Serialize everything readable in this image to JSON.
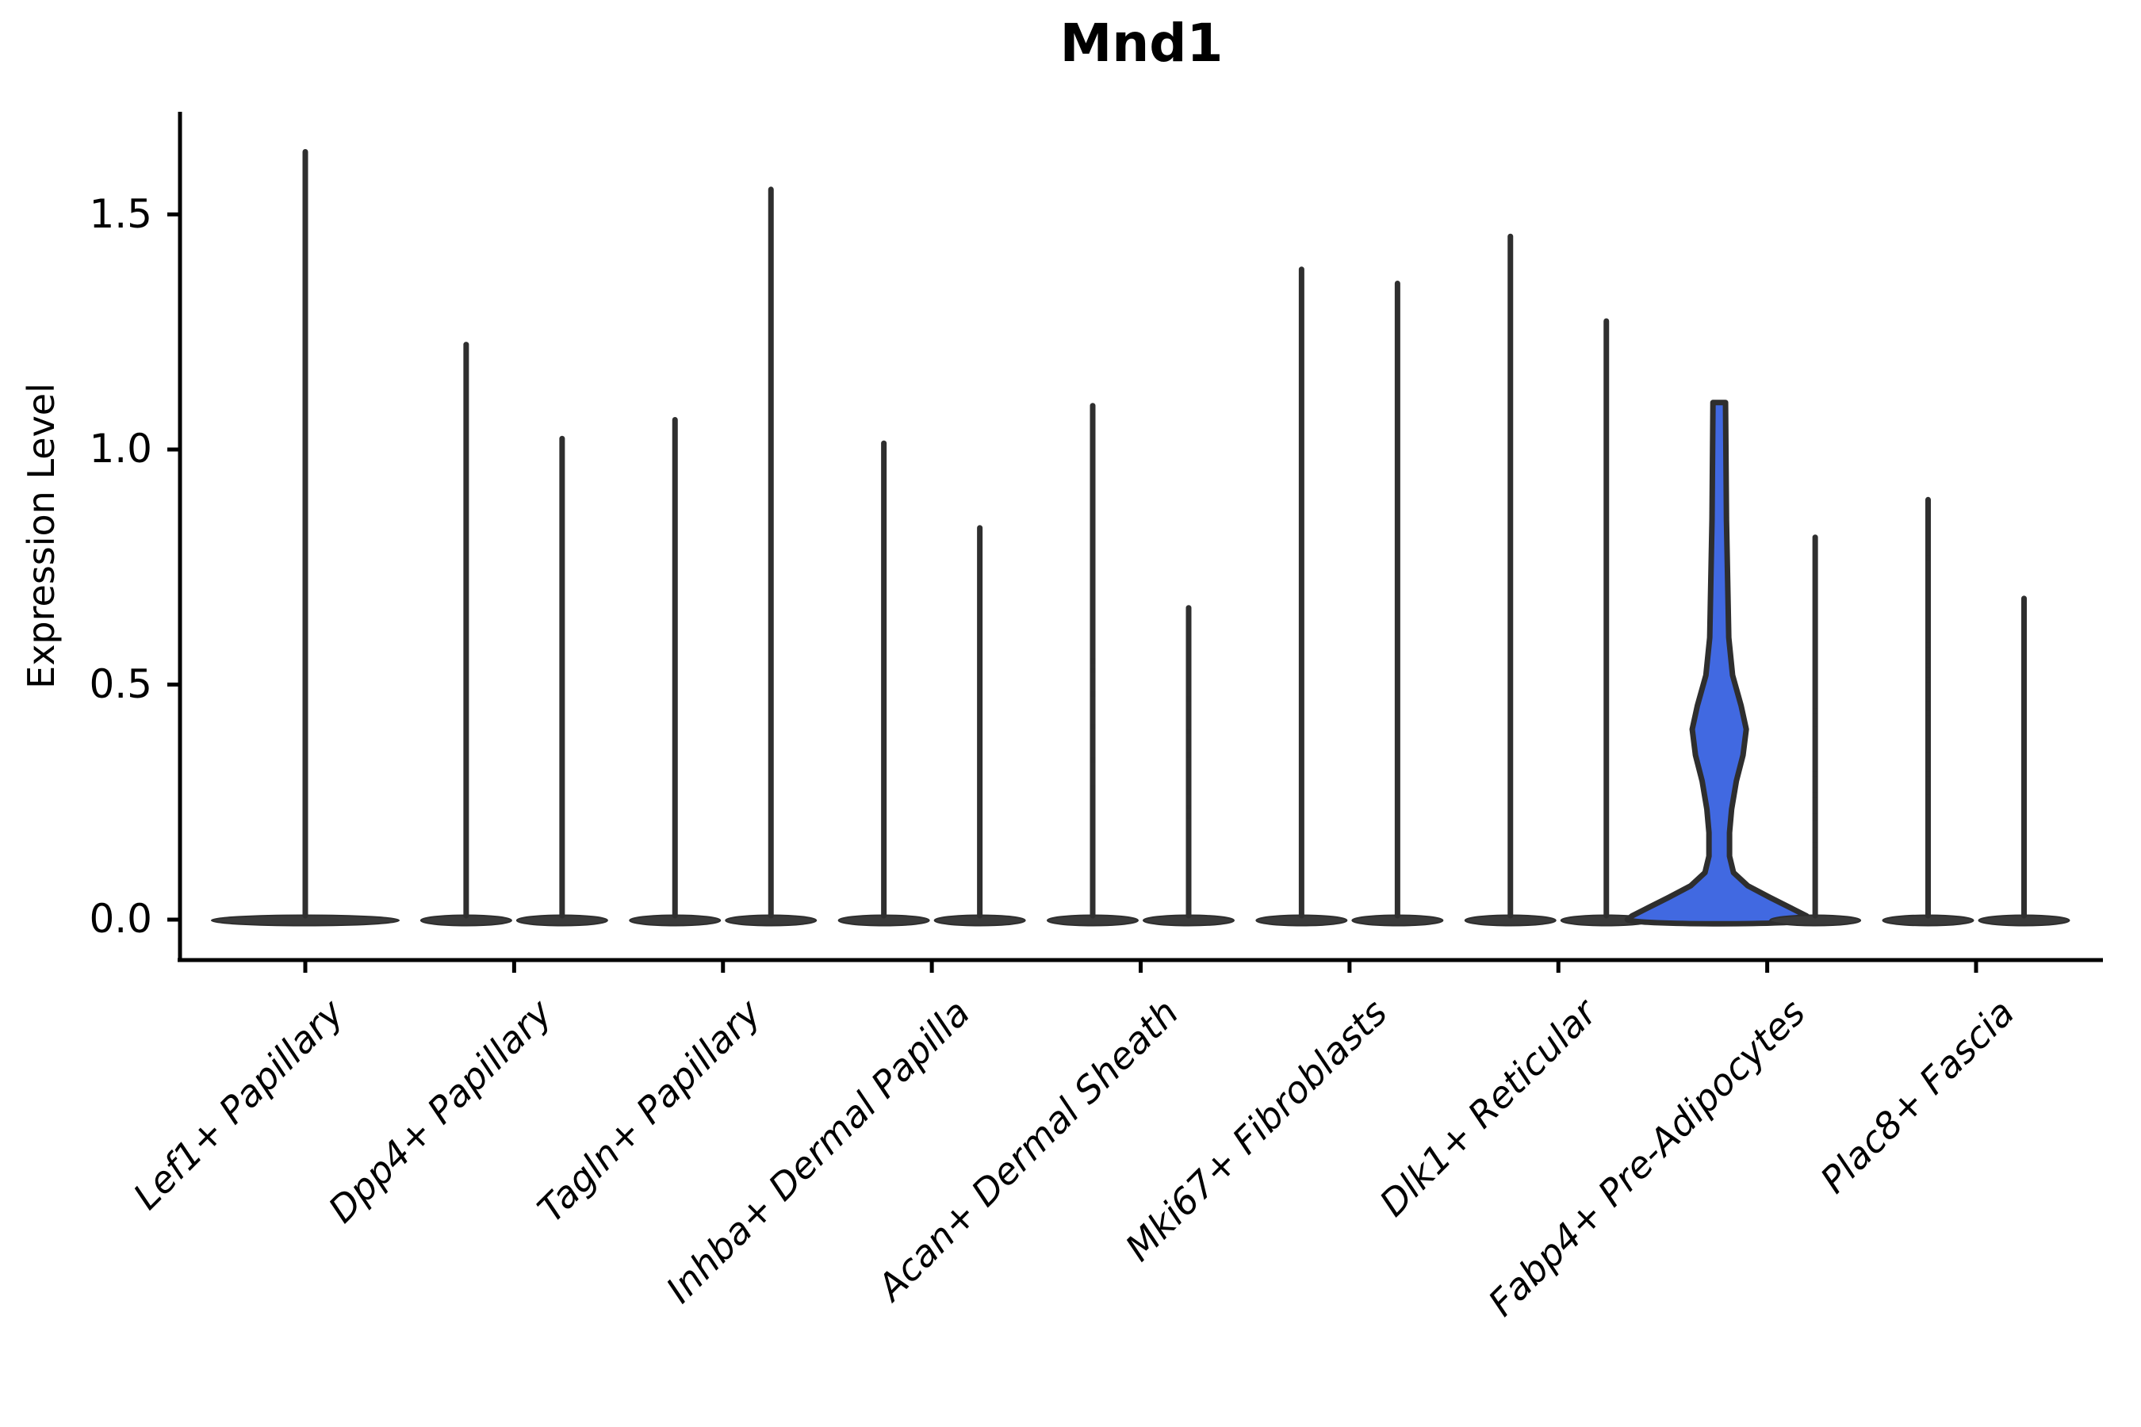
{
  "title": "Mnd1",
  "y_axis": {
    "label": "Expression Level",
    "tick_labels": [
      "0.0",
      "0.5",
      "1.0",
      "1.5"
    ]
  },
  "x_axis": {
    "tick_labels": [
      "Lef1+ Papillary",
      "Dpp4+ Papillary",
      "Tagln+ Papillary",
      "Inhba+ Dermal Papilla",
      "Acan+ Dermal Sheath",
      "Mki67+ Fibroblasts",
      "Dlk1+ Reticular",
      "Fabp4+ Pre-Adipocytes",
      "Plac8+ Fascia"
    ]
  },
  "colors": {
    "highlight_fill": "#4169e1",
    "violin_outline": "#2e2e2e",
    "spike_line": "#2f2f2f",
    "baseline_fill": "#3a3a3a",
    "axis": "#000000",
    "background": "#ffffff"
  },
  "chart_data": {
    "type": "violin",
    "title": "Mnd1",
    "xlabel": "",
    "ylabel": "Expression Level",
    "ylim": [
      0,
      1.72
    ],
    "yticks": [
      0.0,
      0.5,
      1.0,
      1.5
    ],
    "grid": false,
    "legend": null,
    "x_tick_rotation": 45,
    "categories": [
      "Lef1+ Papillary",
      "Dpp4+ Papillary",
      "Tagln+ Papillary",
      "Inhba+ Dermal Papilla",
      "Acan+ Dermal Sheath",
      "Mki67+ Fibroblasts",
      "Dlk1+ Reticular",
      "Fabp4+ Pre-Adipocytes",
      "Plac8+ Fascia"
    ],
    "description": "Violin plot of Mnd1 expression; most violins collapse to a baseline pancake at 0 with a thin spike to the max expression; two violins per category (left/right) except the first which is single; the left violin of Fabp4+ Pre-Adipocytes is highlighted blue with visible density.",
    "violins": [
      {
        "category": "Lef1+ Papillary",
        "side": "full",
        "max": 1.64,
        "style": "spike"
      },
      {
        "category": "Dpp4+ Papillary",
        "side": "left",
        "max": 1.23,
        "style": "spike"
      },
      {
        "category": "Dpp4+ Papillary",
        "side": "right",
        "max": 1.03,
        "style": "spike"
      },
      {
        "category": "Tagln+ Papillary",
        "side": "left",
        "max": 1.07,
        "style": "spike"
      },
      {
        "category": "Tagln+ Papillary",
        "side": "right",
        "max": 1.56,
        "style": "spike"
      },
      {
        "category": "Inhba+ Dermal Papilla",
        "side": "left",
        "max": 1.02,
        "style": "spike"
      },
      {
        "category": "Inhba+ Dermal Papilla",
        "side": "right",
        "max": 0.84,
        "style": "spike"
      },
      {
        "category": "Acan+ Dermal Sheath",
        "side": "left",
        "max": 1.1,
        "style": "spike",
        "dots": [
          0.55,
          0.53,
          0.48,
          0.41,
          0.34,
          0.28
        ],
        "dots_faint": true
      },
      {
        "category": "Acan+ Dermal Sheath",
        "side": "right",
        "max": 0.67,
        "style": "spike",
        "dots": [
          0.47,
          0.4,
          0.35,
          0.27,
          0.24,
          0.22
        ],
        "dots_faint": true
      },
      {
        "category": "Mki67+ Fibroblasts",
        "side": "left",
        "max": 1.39,
        "style": "spike"
      },
      {
        "category": "Mki67+ Fibroblasts",
        "side": "right",
        "max": 1.36,
        "style": "spike"
      },
      {
        "category": "Dlk1+ Reticular",
        "side": "left",
        "max": 1.46,
        "style": "spike"
      },
      {
        "category": "Dlk1+ Reticular",
        "side": "right",
        "max": 1.28,
        "style": "spike"
      },
      {
        "category": "Fabp4+ Pre-Adipocytes",
        "side": "left",
        "max": 1.1,
        "style": "violin",
        "highlighted": true,
        "profile": [
          [
            1.1,
            0.033
          ],
          [
            0.85,
            0.038
          ],
          [
            0.6,
            0.05
          ],
          [
            0.52,
            0.07
          ],
          [
            0.455,
            0.115
          ],
          [
            0.405,
            0.142
          ],
          [
            0.35,
            0.125
          ],
          [
            0.295,
            0.09
          ],
          [
            0.235,
            0.065
          ],
          [
            0.185,
            0.054
          ],
          [
            0.135,
            0.054
          ],
          [
            0.1,
            0.075
          ],
          [
            0.072,
            0.15
          ],
          [
            0.047,
            0.267
          ],
          [
            0.025,
            0.375
          ],
          [
            0.008,
            0.458
          ],
          [
            0.0,
            0.483
          ]
        ]
      },
      {
        "category": "Fabp4+ Pre-Adipocytes",
        "side": "right",
        "max": 0.82,
        "style": "spike",
        "dots": [
          0.445,
          0.405,
          0.31,
          0.265,
          0.23,
          0.205,
          0.16
        ]
      },
      {
        "category": "Plac8+ Fascia",
        "side": "left",
        "max": 0.9,
        "style": "spike",
        "dots": [
          0.77,
          0.585,
          0.54,
          0.51,
          0.47,
          0.44,
          0.36,
          0.31,
          0.27
        ]
      },
      {
        "category": "Plac8+ Fascia",
        "side": "right",
        "max": 0.69,
        "style": "spike"
      }
    ]
  }
}
